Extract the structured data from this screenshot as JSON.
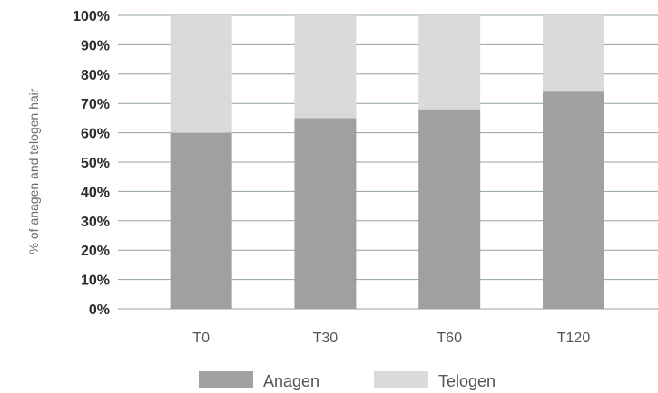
{
  "chart_data": {
    "type": "bar",
    "stacked": true,
    "categories": [
      "T0",
      "T30",
      "T60",
      "T120"
    ],
    "series": [
      {
        "name": "Anagen",
        "values": [
          60,
          65,
          68,
          74
        ],
        "color": "#9ea1a0"
      },
      {
        "name": "Telogen",
        "values": [
          40,
          35,
          32,
          26
        ],
        "color": "#dadada"
      }
    ],
    "ylabel": "% of anagen and telogen hair",
    "xlabel": "",
    "ylim": [
      0,
      100
    ],
    "yticks": [
      "0%",
      "10%",
      "20%",
      "30%",
      "40%",
      "50%",
      "60%",
      "70%",
      "80%",
      "90%",
      "100%"
    ],
    "grid": true,
    "grid_color": "#8fa3a0",
    "legend_position": "bottom"
  }
}
